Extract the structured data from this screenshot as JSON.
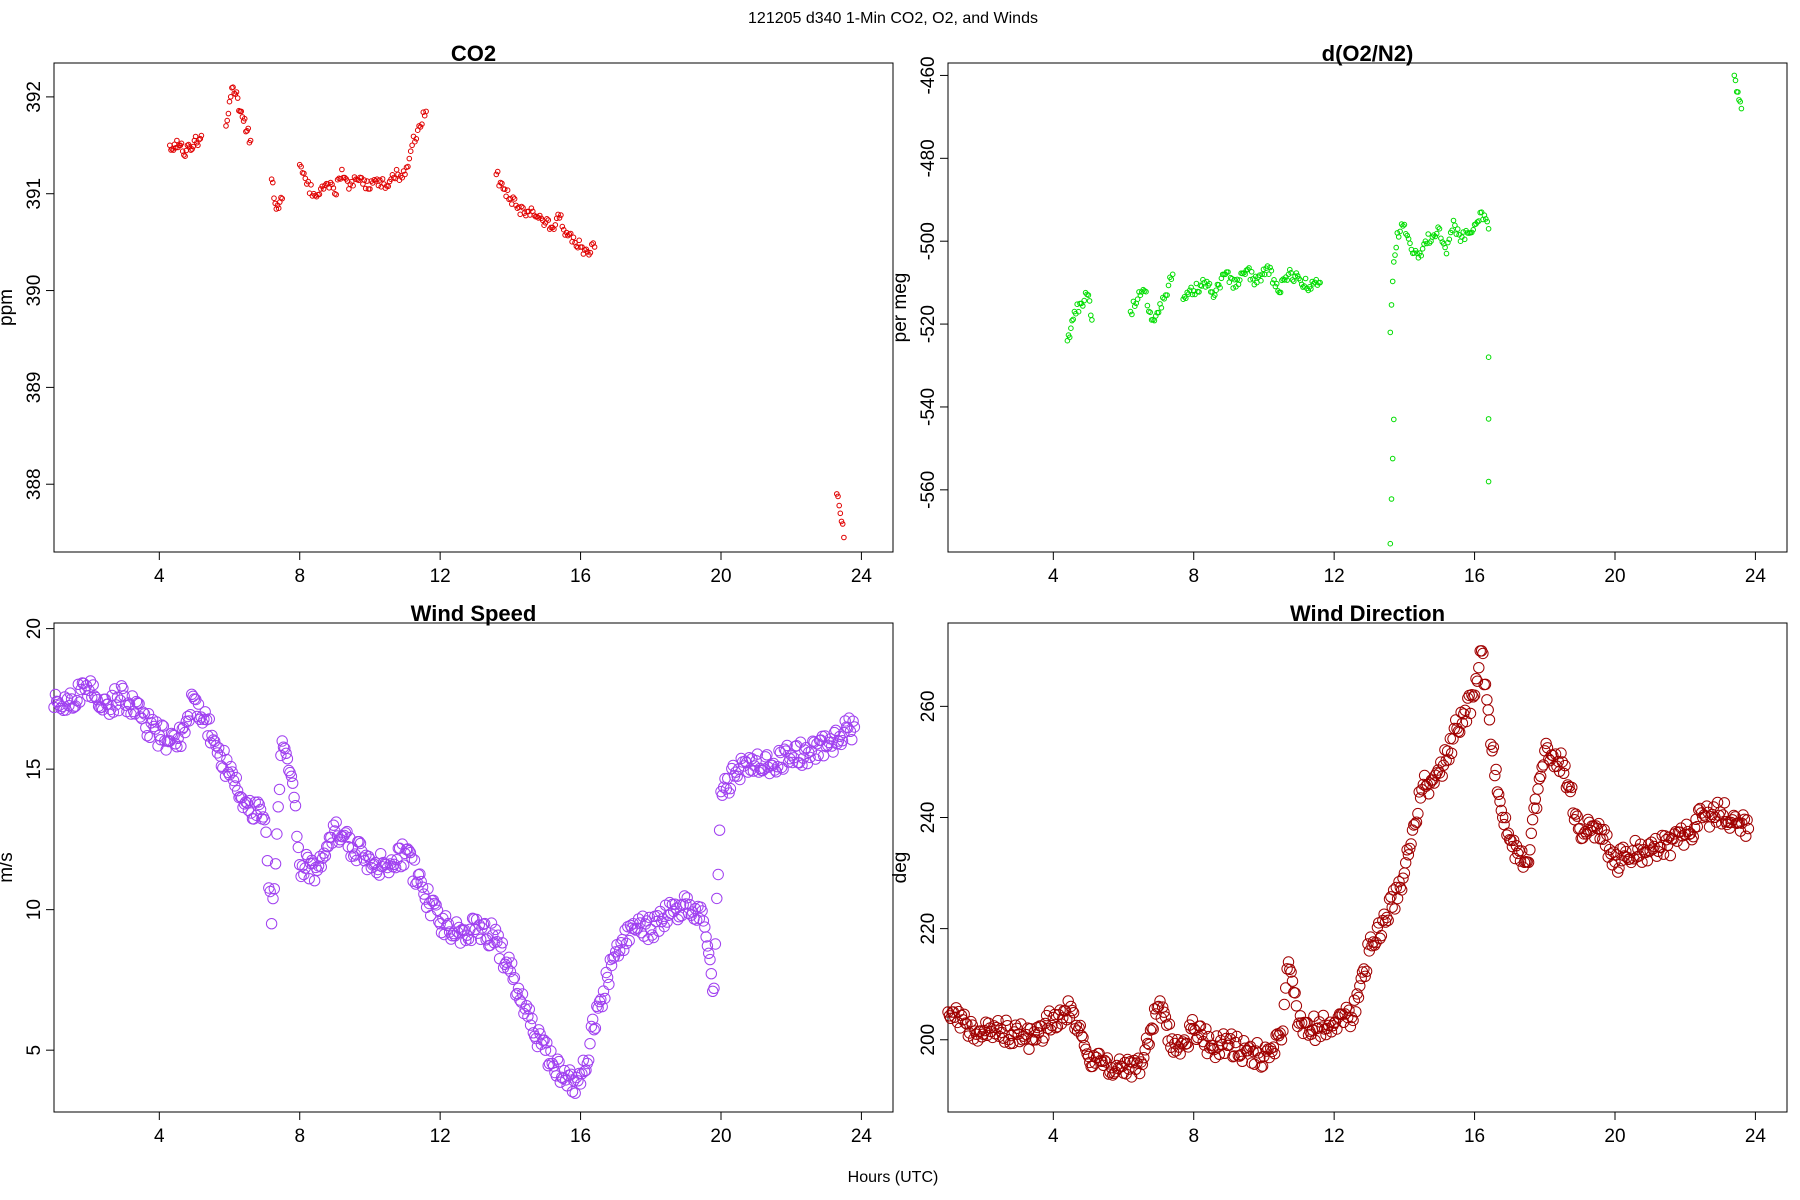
{
  "figure": {
    "title": "121205   d340   1-Min CO2, O2, and Winds",
    "xlabel": "Hours (UTC)"
  },
  "chart_data": [
    {
      "id": "co2",
      "type": "scatter",
      "title": "CO2",
      "ylabel": "ppm",
      "xlim": [
        1.0,
        24.9
      ],
      "ylim": [
        387.3,
        392.35
      ],
      "xticks": [
        4,
        8,
        12,
        16,
        20,
        24
      ],
      "yticks": [
        388,
        389,
        390,
        391,
        392
      ],
      "grid": false,
      "color": "#e00000",
      "marker": "small-circle",
      "series": [
        {
          "segments": [
            {
              "x": [
                4.3,
                4.4,
                4.5,
                4.6,
                4.7,
                4.8,
                4.9,
                5.0,
                5.1,
                5.2
              ],
              "y": [
                391.5,
                391.45,
                391.55,
                391.5,
                391.4,
                391.5,
                391.45,
                391.55,
                391.5,
                391.6
              ]
            },
            {
              "x": [
                5.9,
                6.0,
                6.1,
                6.2,
                6.3,
                6.4,
                6.5,
                6.6
              ],
              "y": [
                391.7,
                391.95,
                392.1,
                392.05,
                391.85,
                391.75,
                391.65,
                391.55
              ]
            },
            {
              "x": [
                7.2,
                7.3,
                7.4,
                7.5
              ],
              "y": [
                391.15,
                390.9,
                390.85,
                390.95
              ]
            },
            {
              "x": [
                8.0,
                8.2,
                8.4,
                8.6,
                8.8,
                9.0,
                9.2,
                9.4,
                9.6,
                9.8,
                10.0,
                10.2,
                10.4,
                10.6,
                10.8,
                11.0,
                11.2,
                11.4,
                11.6
              ],
              "y": [
                391.3,
                391.1,
                391.0,
                391.05,
                391.1,
                391.0,
                391.25,
                391.05,
                391.15,
                391.1,
                391.05,
                391.15,
                391.1,
                391.15,
                391.2,
                391.2,
                391.5,
                391.7,
                391.85
              ]
            },
            {
              "x": [
                13.6,
                13.8,
                14.0,
                14.2,
                14.4,
                14.6,
                14.8,
                15.0,
                15.2,
                15.4,
                15.6,
                15.8,
                16.0,
                16.2,
                16.4
              ],
              "y": [
                391.2,
                391.05,
                390.95,
                390.85,
                390.8,
                390.85,
                390.75,
                390.7,
                390.65,
                390.75,
                390.6,
                390.55,
                390.45,
                390.4,
                390.45
              ]
            },
            {
              "x": [
                23.3,
                23.4,
                23.5
              ],
              "y": [
                387.9,
                387.7,
                387.45
              ]
            }
          ]
        }
      ]
    },
    {
      "id": "o2",
      "type": "scatter",
      "title": "d(O2/N2)",
      "ylabel": "per meg",
      "xlim": [
        1.0,
        24.9
      ],
      "ylim": [
        -575,
        -457
      ],
      "xticks": [
        4,
        8,
        12,
        16,
        20,
        24
      ],
      "yticks": [
        -560,
        -540,
        -520,
        -500,
        -480,
        -460
      ],
      "grid": false,
      "color": "#00dd00",
      "marker": "small-circle",
      "series": [
        {
          "segments": [
            {
              "x": [
                4.4,
                4.5,
                4.6,
                4.8,
                5.0,
                5.1
              ],
              "y": [
                -524,
                -521,
                -517,
                -515,
                -513,
                -519
              ]
            },
            {
              "x": [
                6.2,
                6.4,
                6.6,
                6.8,
                7.2,
                7.4
              ],
              "y": [
                -517,
                -514,
                -512,
                -519,
                -513,
                -508
              ]
            },
            {
              "x": [
                7.7,
                8.0,
                8.3,
                8.6,
                8.9,
                9.2,
                9.5,
                9.8,
                10.1,
                10.4,
                10.7,
                11.0,
                11.3,
                11.6
              ],
              "y": [
                -514,
                -512,
                -510,
                -513,
                -508,
                -511,
                -507,
                -510,
                -506,
                -512,
                -508,
                -509,
                -511,
                -510
              ]
            },
            {
              "x": [
                13.6,
                13.7,
                13.8,
                14.0,
                14.2,
                14.4,
                14.6,
                14.8,
                15.0,
                15.2,
                15.4,
                15.6,
                15.8,
                16.0,
                16.2,
                16.4
              ],
              "y": [
                -522,
                -505,
                -498,
                -496,
                -502,
                -504,
                -500,
                -499,
                -497,
                -503,
                -495,
                -500,
                -498,
                -496,
                -493,
                -497
              ]
            },
            {
              "x": [
                13.6,
                13.7,
                16.4,
                16.4
              ],
              "y": [
                -573,
                -543,
                -528,
                -558
              ]
            },
            {
              "x": [
                23.4,
                23.5,
                23.6
              ],
              "y": [
                -460,
                -464,
                -468
              ]
            }
          ]
        }
      ]
    },
    {
      "id": "wind-speed",
      "type": "scatter",
      "title": "Wind Speed",
      "ylabel": "m/s",
      "xlim": [
        1.0,
        24.9
      ],
      "ylim": [
        2.8,
        20.2
      ],
      "xticks": [
        4,
        8,
        12,
        16,
        20,
        24
      ],
      "yticks": [
        5,
        10,
        15,
        20
      ],
      "grid": false,
      "color": "#a040f0",
      "marker": "circle",
      "series": [
        {
          "x": [
            1.0,
            1.5,
            2.0,
            2.5,
            3.0,
            3.5,
            4.0,
            4.5,
            5.0,
            5.5,
            6.0,
            6.5,
            7.0,
            7.2,
            7.5,
            7.8,
            8.0,
            8.5,
            9.0,
            9.5,
            10.0,
            10.5,
            11.0,
            11.5,
            12.0,
            12.5,
            13.0,
            13.5,
            14.0,
            14.5,
            15.0,
            15.5,
            16.0,
            16.5,
            17.0,
            17.5,
            18.0,
            18.5,
            19.0,
            19.5,
            19.8,
            20.0,
            20.5,
            21.0,
            21.5,
            22.0,
            22.5,
            23.0,
            23.5,
            23.8
          ],
          "y": [
            17.2,
            17.5,
            17.8,
            17.3,
            17.6,
            16.8,
            16.2,
            15.8,
            17.5,
            16.2,
            14.8,
            13.8,
            13.2,
            9.5,
            16.0,
            14.5,
            11.6,
            11.4,
            12.8,
            12.2,
            11.8,
            11.5,
            12.0,
            10.8,
            9.5,
            9.2,
            9.3,
            9.1,
            7.8,
            6.2,
            5.0,
            4.0,
            3.8,
            6.5,
            8.5,
            9.5,
            9.3,
            9.8,
            10.2,
            9.6,
            7.2,
            14.2,
            15.0,
            15.3,
            15.2,
            15.5,
            15.6,
            15.8,
            16.3,
            16.5
          ]
        }
      ]
    },
    {
      "id": "wind-direction",
      "type": "scatter",
      "title": "Wind Direction",
      "ylabel": "deg",
      "xlim": [
        1.0,
        24.9
      ],
      "ylim": [
        187,
        275
      ],
      "xticks": [
        4,
        8,
        12,
        16,
        20,
        24
      ],
      "yticks": [
        200,
        220,
        240,
        260
      ],
      "grid": false,
      "color": "#a00000",
      "marker": "circle",
      "series": [
        {
          "x": [
            1.0,
            1.5,
            2.0,
            2.5,
            3.0,
            3.5,
            4.0,
            4.5,
            5.0,
            5.5,
            6.0,
            6.5,
            7.0,
            7.5,
            8.0,
            8.5,
            9.0,
            9.5,
            10.0,
            10.5,
            10.7,
            11.0,
            11.5,
            12.0,
            12.5,
            13.0,
            13.5,
            14.0,
            14.5,
            15.0,
            15.5,
            16.0,
            16.2,
            16.5,
            16.8,
            17.0,
            17.5,
            18.0,
            18.5,
            19.0,
            19.5,
            20.0,
            20.5,
            21.0,
            21.5,
            22.0,
            22.5,
            23.0,
            23.5,
            23.8
          ],
          "y": [
            205,
            203,
            201,
            202,
            201,
            200,
            204,
            206,
            197,
            196,
            194,
            196,
            206,
            198,
            202,
            199,
            199,
            198,
            197,
            200,
            214,
            203,
            202,
            203,
            204,
            216,
            222,
            230,
            245,
            248,
            256,
            262,
            270,
            252,
            240,
            236,
            232,
            252,
            250,
            238,
            238,
            232,
            234,
            234,
            235,
            237,
            240,
            241,
            239,
            238
          ]
        }
      ]
    }
  ]
}
